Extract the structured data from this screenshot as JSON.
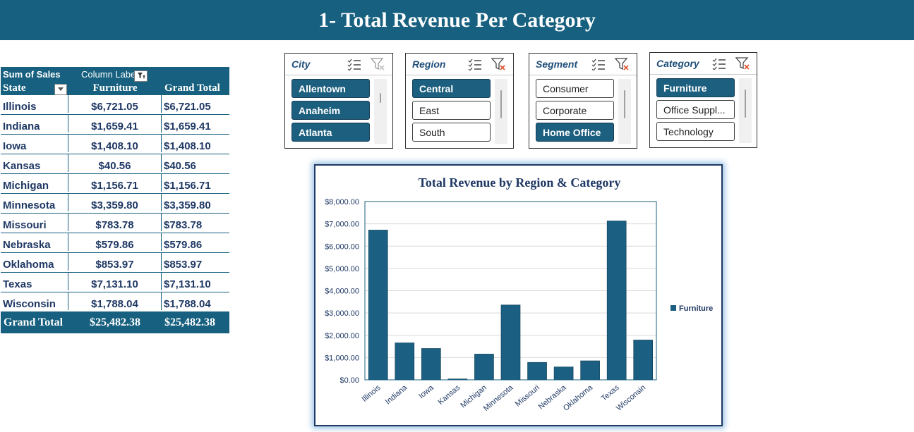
{
  "banner": {
    "title": "1- Total Revenue Per Category"
  },
  "pivot": {
    "header_measure": "Sum of Sales",
    "header_columns": "Column Labels",
    "row_label": "State",
    "col_category": "Furniture",
    "col_grand": "Grand Total",
    "rows": [
      {
        "state": "Illinois",
        "furniture": "$6,721.05",
        "grand": "$6,721.05"
      },
      {
        "state": "Indiana",
        "furniture": "$1,659.41",
        "grand": "$1,659.41"
      },
      {
        "state": "Iowa",
        "furniture": "$1,408.10",
        "grand": "$1,408.10"
      },
      {
        "state": "Kansas",
        "furniture": "$40.56",
        "grand": "$40.56"
      },
      {
        "state": "Michigan",
        "furniture": "$1,156.71",
        "grand": "$1,156.71"
      },
      {
        "state": "Minnesota",
        "furniture": "$3,359.80",
        "grand": "$3,359.80"
      },
      {
        "state": "Missouri",
        "furniture": "$783.78",
        "grand": "$783.78"
      },
      {
        "state": "Nebraska",
        "furniture": "$579.86",
        "grand": "$579.86"
      },
      {
        "state": "Oklahoma",
        "furniture": "$853.97",
        "grand": "$853.97"
      },
      {
        "state": "Texas",
        "furniture": "$7,131.10",
        "grand": "$7,131.10"
      },
      {
        "state": "Wisconsin",
        "furniture": "$1,788.04",
        "grand": "$1,788.04"
      }
    ],
    "total_label": "Grand Total",
    "total_furniture": "$25,482.38",
    "total_grand": "$25,482.38"
  },
  "slicers": [
    {
      "title": "City",
      "items": [
        {
          "label": "Allentown",
          "selected": true
        },
        {
          "label": "Anaheim",
          "selected": true
        },
        {
          "label": "Atlanta",
          "selected": true
        }
      ]
    },
    {
      "title": "Region",
      "items": [
        {
          "label": "Central",
          "selected": true
        },
        {
          "label": "East",
          "selected": false
        },
        {
          "label": "South",
          "selected": false
        }
      ]
    },
    {
      "title": "Segment",
      "items": [
        {
          "label": "Consumer",
          "selected": false
        },
        {
          "label": "Corporate",
          "selected": false
        },
        {
          "label": "Home Office",
          "selected": true
        }
      ]
    },
    {
      "title": "Category",
      "items": [
        {
          "label": "Furniture",
          "selected": true
        },
        {
          "label": "Office Suppl...",
          "selected": false
        },
        {
          "label": "Technology",
          "selected": false
        }
      ]
    }
  ],
  "colors": {
    "accent": "#17607f",
    "bar": "#1b5f82",
    "selected": "#1d5f7e",
    "text": "#1f3864"
  },
  "chart_data": {
    "type": "bar",
    "title": "Total Revenue by Region & Category",
    "categories": [
      "Illinois",
      "Indiana",
      "Iowa",
      "Kansas",
      "Michigan",
      "Minnesota",
      "Missouri",
      "Nebraska",
      "Oklahoma",
      "Texas",
      "Wisconsin"
    ],
    "series": [
      {
        "name": "Furniture",
        "values": [
          6721.05,
          1659.41,
          1408.1,
          40.56,
          1156.71,
          3359.8,
          783.78,
          579.86,
          853.97,
          7131.1,
          1788.04
        ]
      }
    ],
    "ylim": [
      0,
      8000
    ],
    "yticks": [
      "$0.00",
      "$1,000.00",
      "$2,000.00",
      "$3,000.00",
      "$4,000.00",
      "$5,000.00",
      "$6,000.00",
      "$7,000.00",
      "$8,000.00"
    ],
    "legend_position": "right",
    "grid": true
  }
}
